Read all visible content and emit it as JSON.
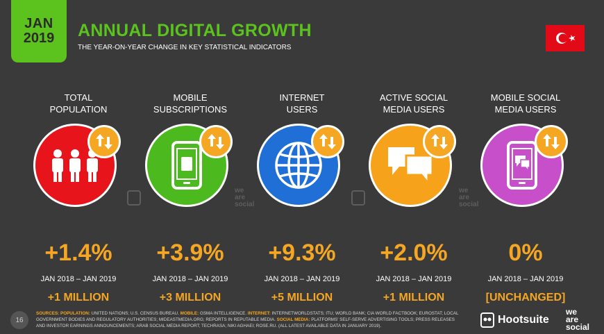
{
  "header": {
    "month": "JAN",
    "year": "2019",
    "title": "ANNUAL DIGITAL GROWTH",
    "subtitle": "THE YEAR-ON-YEAR CHANGE IN KEY STATISTICAL INDICATORS",
    "flag_icon": "turkey-flag-icon"
  },
  "colors": {
    "green": "#5bc21e",
    "orange": "#f5a623",
    "background": "#3a3a3a",
    "red": "#e8141c",
    "mobile_green": "#4cba1e",
    "blue": "#1f6fd6",
    "social_orange": "#f7a21b",
    "purple": "#c74fc9"
  },
  "indicators": [
    {
      "label_line1": "TOTAL",
      "label_line2": "POPULATION",
      "icon": "people-icon",
      "circle_color": "#e8141c",
      "change_pct": "+1.4%",
      "range": "JAN 2018 – JAN 2019",
      "change_abs": "+1 MILLION"
    },
    {
      "label_line1": "MOBILE",
      "label_line2": "SUBSCRIPTIONS",
      "icon": "mobile-sim-icon",
      "circle_color": "#4cba1e",
      "change_pct": "+3.9%",
      "range": "JAN 2018 – JAN 2019",
      "change_abs": "+3 MILLION"
    },
    {
      "label_line1": "INTERNET",
      "label_line2": "USERS",
      "icon": "globe-icon",
      "circle_color": "#1f6fd6",
      "change_pct": "+9.3%",
      "range": "JAN 2018 – JAN 2019",
      "change_abs": "+5 MILLION"
    },
    {
      "label_line1": "ACTIVE SOCIAL",
      "label_line2": "MEDIA USERS",
      "icon": "chat-bubbles-icon",
      "circle_color": "#f7a21b",
      "change_pct": "+2.0%",
      "range": "JAN 2018 – JAN 2019",
      "change_abs": "+1 MILLION"
    },
    {
      "label_line1": "MOBILE SOCIAL",
      "label_line2": "MEDIA USERS",
      "icon": "mobile-chat-icon",
      "circle_color": "#c74fc9",
      "change_pct": "0%",
      "range": "JAN 2018 – JAN 2019",
      "change_abs": "[UNCHANGED]"
    }
  ],
  "watermark": {
    "line1": "we",
    "line2": "are",
    "line3": "social"
  },
  "footer": {
    "page_number": "16",
    "sources_label": "SOURCES:",
    "k_population": "POPULATION:",
    "t_population": " UNITED NATIONS; U.S. CENSUS BUREAU. ",
    "k_mobile": "MOBILE:",
    "t_mobile": " GSMA INTELLIGENCE. ",
    "k_internet": "INTERNET:",
    "t_internet": " INTERNETWORLDSTATS; ITU; WORLD BANK; CIA WORLD FACTBOOK; EUROSTAT; LOCAL GOVERNMENT BODIES AND REGULATORY AUTHORITIES; MIDEASTMEDIA.ORG; REPORTS IN REPUTABLE MEDIA. ",
    "k_social": "SOCIAL MEDIA:",
    "t_social": " PLATFORMS' SELF-SERVE ADVERTISING TOOLS; PRESS RELEASES AND INVESTOR EARNINGS ANNOUNCEMENTS; ARAB SOCIAL MEDIA REPORT; TECHRASA; NIKI AGHAEI; ROSE.RU. (ALL LATEST AVAILABLE DATA IN JANUARY 2019).",
    "hootsuite": "Hootsuite",
    "was_line1": "we",
    "was_line2": "are",
    "was_line3": "social"
  }
}
